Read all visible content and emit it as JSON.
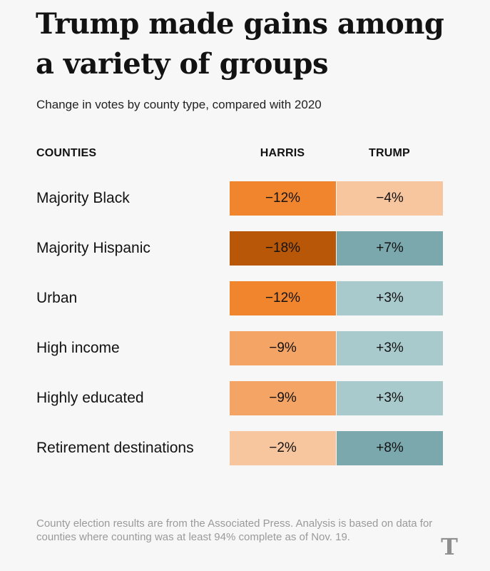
{
  "title": "Trump made gains among a variety of groups",
  "subtitle": "Change in votes by county type, compared with 2020",
  "headers": {
    "counties": "COUNTIES",
    "harris": "HARRIS",
    "trump": "TRUMP"
  },
  "chart_data": {
    "type": "table",
    "columns": [
      "HARRIS",
      "TRUMP"
    ],
    "rows": [
      {
        "label": "Majority Black",
        "harris": "−12%",
        "trump": "−4%",
        "harris_value": -12,
        "trump_value": -4,
        "harris_color": "#f0852d",
        "trump_color": "#f7c59e"
      },
      {
        "label": "Majority Hispanic",
        "harris": "−18%",
        "trump": "+7%",
        "harris_value": -18,
        "trump_value": 7,
        "harris_color": "#b85708",
        "trump_color": "#7ba8ad"
      },
      {
        "label": "Urban",
        "harris": "−12%",
        "trump": "+3%",
        "harris_value": -12,
        "trump_value": 3,
        "harris_color": "#f0852d",
        "trump_color": "#a9cacc"
      },
      {
        "label": "High income",
        "harris": "−9%",
        "trump": "+3%",
        "harris_value": -9,
        "trump_value": 3,
        "harris_color": "#f4a464",
        "trump_color": "#a9cacc"
      },
      {
        "label": "Highly educated",
        "harris": "−9%",
        "trump": "+3%",
        "harris_value": -9,
        "trump_value": 3,
        "harris_color": "#f4a464",
        "trump_color": "#a9cacc"
      },
      {
        "label": "Retirement destinations",
        "harris": "−2%",
        "trump": "+8%",
        "harris_value": -2,
        "trump_value": 8,
        "harris_color": "#f7c59e",
        "trump_color": "#7ba8ad"
      }
    ]
  },
  "footnote": "County election results are from the Associated Press. Analysis is based on data for counties where counting was at least 94% complete as of Nov. 19.",
  "logo": {
    "icon": "nyt-t-logo-icon",
    "glyph": "T"
  }
}
